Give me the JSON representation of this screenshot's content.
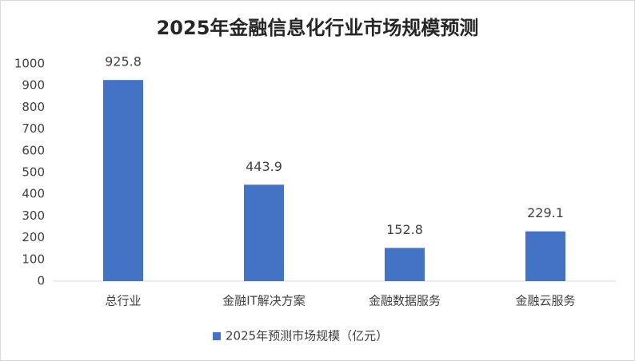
{
  "chart_data": {
    "type": "bar",
    "title": "2025年金融信息化行业市场规模预测",
    "categories": [
      "总行业",
      "金融IT解决方案",
      "金融数据服务",
      "金融云服务"
    ],
    "series": [
      {
        "name": "2025年预测市场规模（亿元）",
        "color": "#4472c4",
        "values": [
          925.8,
          443.9,
          152.8,
          229.1
        ]
      }
    ],
    "ylim": [
      0,
      1000
    ],
    "yticks": [
      0,
      100,
      200,
      300,
      400,
      500,
      600,
      700,
      800,
      900,
      1000
    ],
    "grid": false,
    "legend": "bottom"
  }
}
